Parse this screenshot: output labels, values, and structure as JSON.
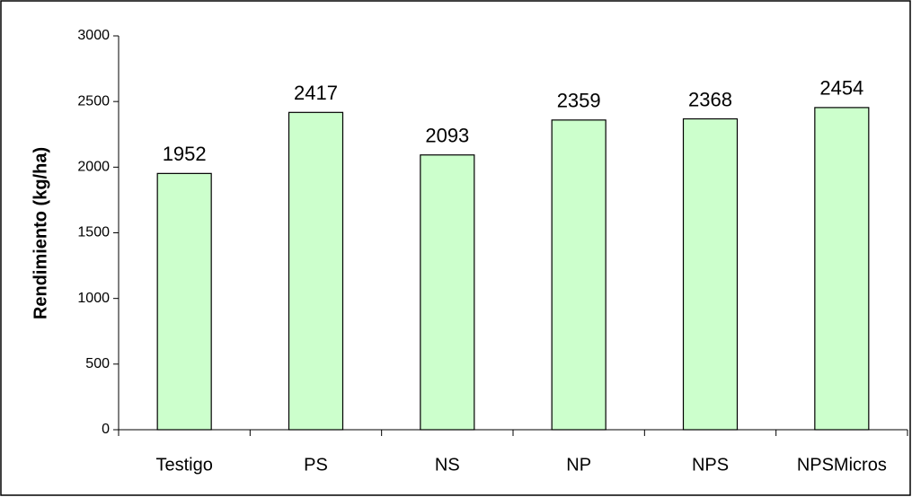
{
  "chart_data": {
    "type": "bar",
    "y_label": "Rendimiento (kg/ha)",
    "categories": [
      "Testigo",
      "PS",
      "NS",
      "NP",
      "NPS",
      "NPSMicros"
    ],
    "values": [
      1952,
      2417,
      2093,
      2359,
      2368,
      2454
    ],
    "color": "#ccffcc",
    "ylim": [
      0,
      3000
    ],
    "yticks": [
      0,
      500,
      1000,
      1500,
      2000,
      2500,
      3000
    ],
    "grid": false
  }
}
